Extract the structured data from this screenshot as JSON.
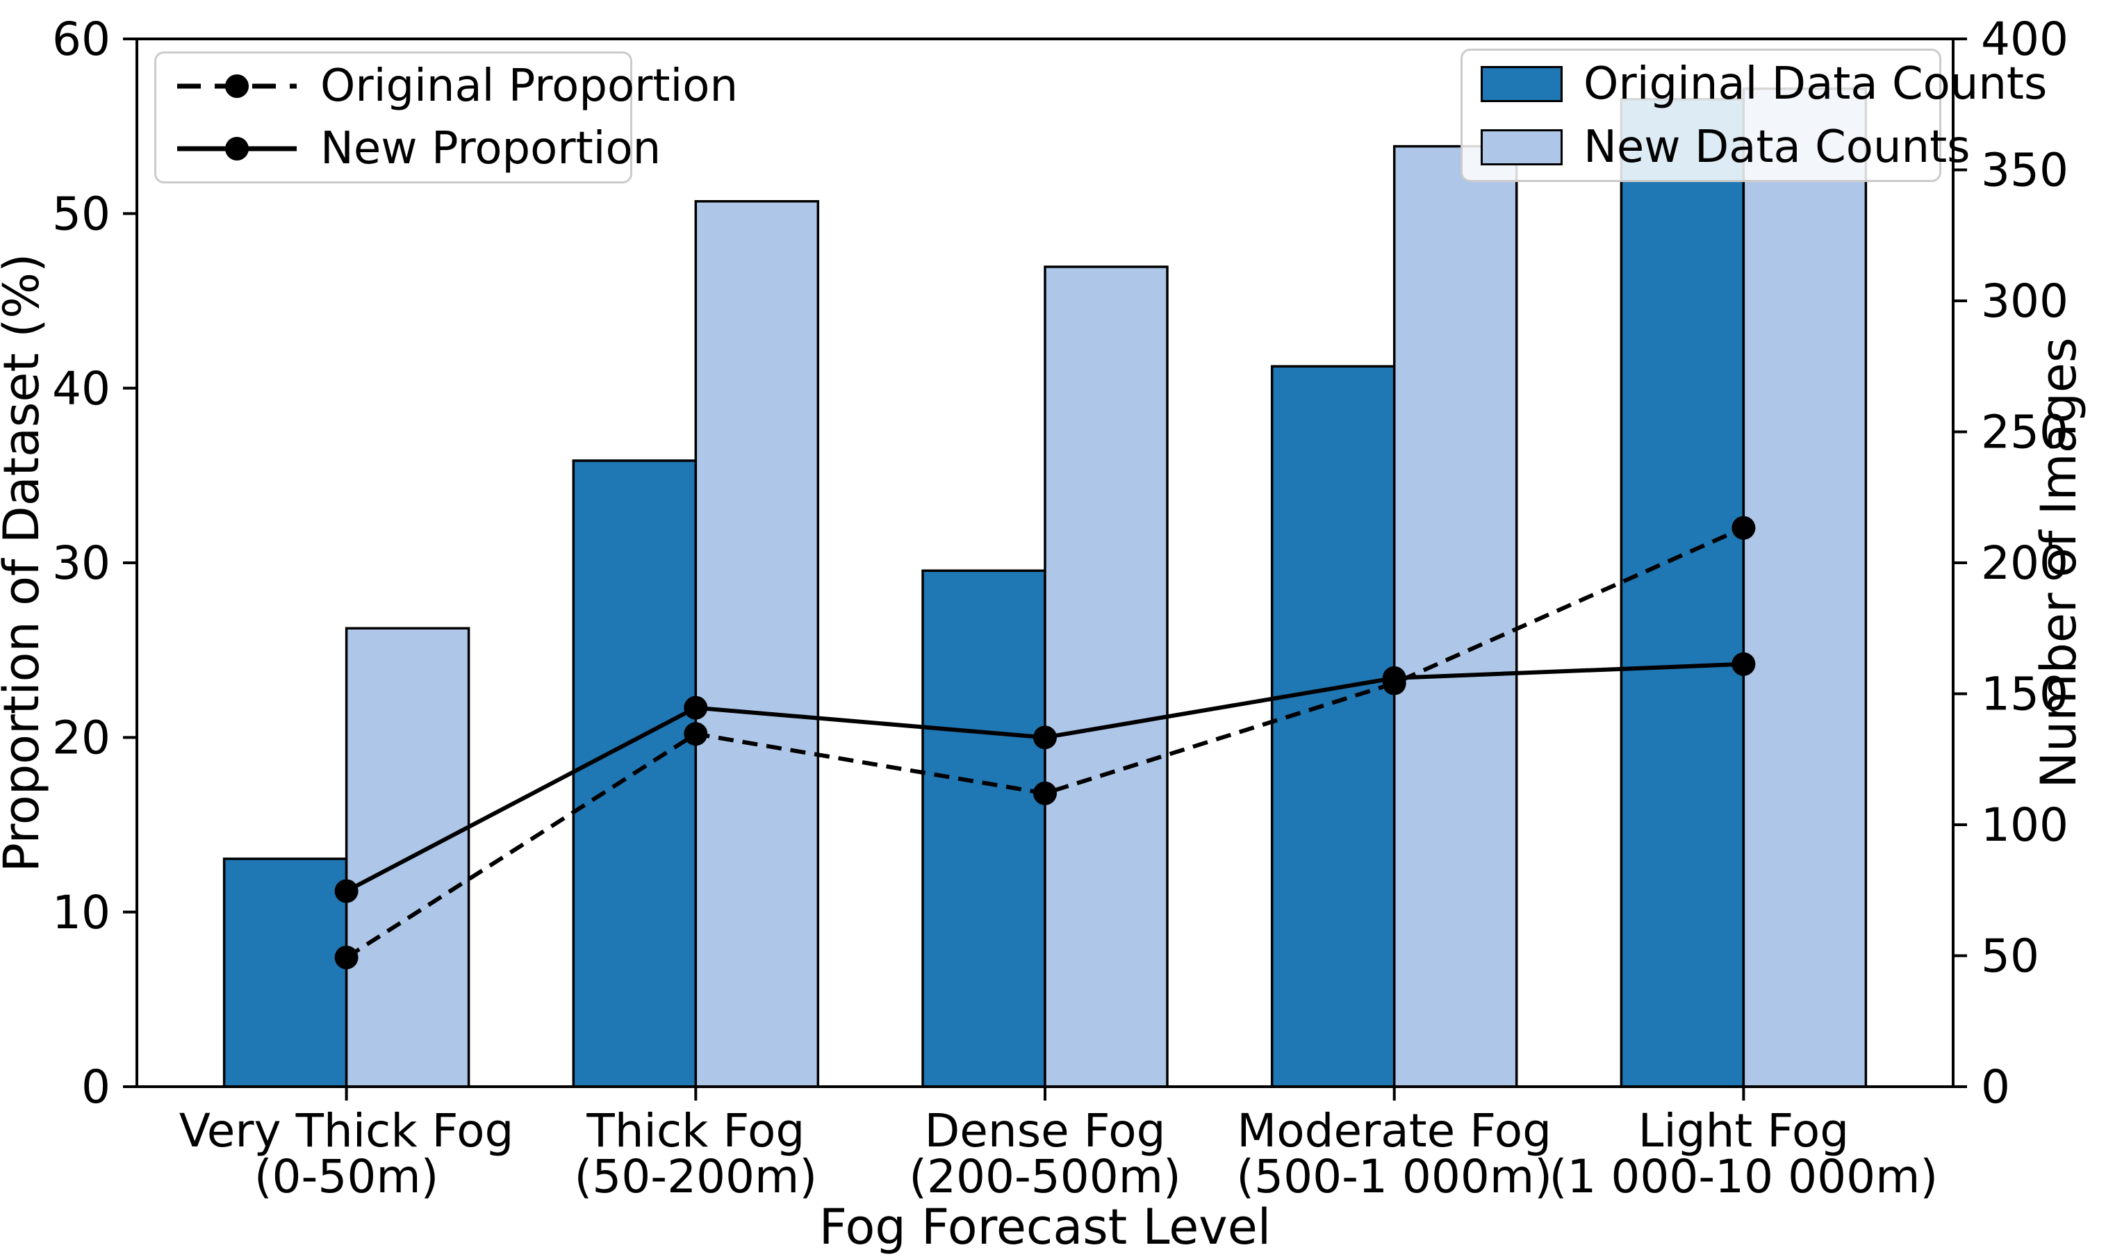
{
  "chart_data": {
    "type": "bar+line combo",
    "title": "",
    "xlabel": "Fog Forecast Level",
    "ylabel_left": "Proportion of Dataset (%)",
    "ylabel_right": "Number of Images",
    "categories": [
      "Very Thick Fog\n(0-50m)",
      "Thick Fog\n(50-200m)",
      "Dense Fog\n(200-500m)",
      "Moderate Fog\n(500-1 000m)",
      "Light Fog\n(1 000-10 000m)"
    ],
    "ylim_left": [
      0,
      60
    ],
    "yticks_left": [
      0,
      10,
      20,
      30,
      40,
      50,
      60
    ],
    "ylim_right": [
      0,
      400
    ],
    "yticks_right": [
      0,
      50,
      100,
      150,
      200,
      250,
      300,
      350,
      400
    ],
    "grid": "off",
    "bar_series": [
      {
        "name": "Original Data Counts",
        "axis": "right",
        "color": "#1f77b4",
        "edge_color": "#000000",
        "values": [
          87,
          239,
          197,
          275,
          377
        ]
      },
      {
        "name": "New Data Counts",
        "axis": "right",
        "color": "#aec7e8",
        "edge_color": "#000000",
        "values": [
          175,
          338,
          313,
          359,
          381
        ]
      }
    ],
    "line_series": [
      {
        "name": "Original Proportion",
        "axis": "left",
        "style": "dashed",
        "color": "#000000",
        "marker": "circle",
        "values": [
          7.4,
          20.2,
          16.8,
          23.1,
          32.0
        ]
      },
      {
        "name": "New Proportion",
        "axis": "left",
        "style": "solid",
        "color": "#000000",
        "marker": "circle",
        "values": [
          11.2,
          21.7,
          20.0,
          23.4,
          24.2
        ]
      }
    ],
    "legend_left_position": "upper left",
    "legend_right_position": "upper right"
  }
}
